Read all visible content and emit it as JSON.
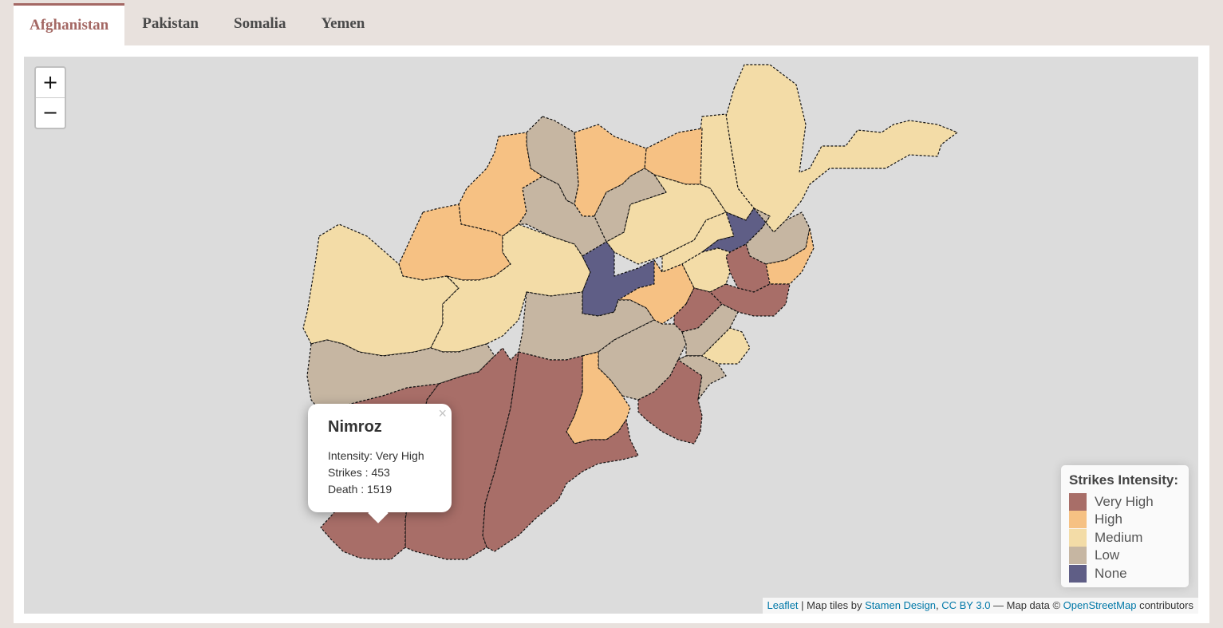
{
  "tabs": [
    {
      "label": "Afghanistan",
      "active": true
    },
    {
      "label": "Pakistan",
      "active": false
    },
    {
      "label": "Somalia",
      "active": false
    },
    {
      "label": "Yemen",
      "active": false
    }
  ],
  "zoom": {
    "in_label": "+",
    "out_label": "−"
  },
  "popup": {
    "title": "Nimroz",
    "intensity": "Intensity: Very High",
    "strikes": "Strikes : 453",
    "death": "Death : 1519",
    "close": "×"
  },
  "legend": {
    "title": "Strikes Intensity:",
    "items": [
      {
        "label": "Very High",
        "color": "#a86e68"
      },
      {
        "label": "High",
        "color": "#f6c183"
      },
      {
        "label": "Medium",
        "color": "#f3dca7"
      },
      {
        "label": "Low",
        "color": "#c6b6a2"
      },
      {
        "label": "None",
        "color": "#5f5e86"
      }
    ]
  },
  "attribution": {
    "leaflet": "Leaflet",
    "sep1": " | Map tiles by ",
    "stamen": "Stamen Design",
    "sep2": ", ",
    "license": "CC BY 3.0",
    "sep3": " — Map data © ",
    "osm": "OpenStreetMap",
    "sep4": " contributors"
  },
  "colors": {
    "very_high": "#a86e68",
    "high": "#f6c183",
    "medium": "#f3dca7",
    "low": "#c6b6a2",
    "none": "#5f5e86",
    "tab_active": "#a46864",
    "map_bg": "#dcdcdc"
  }
}
